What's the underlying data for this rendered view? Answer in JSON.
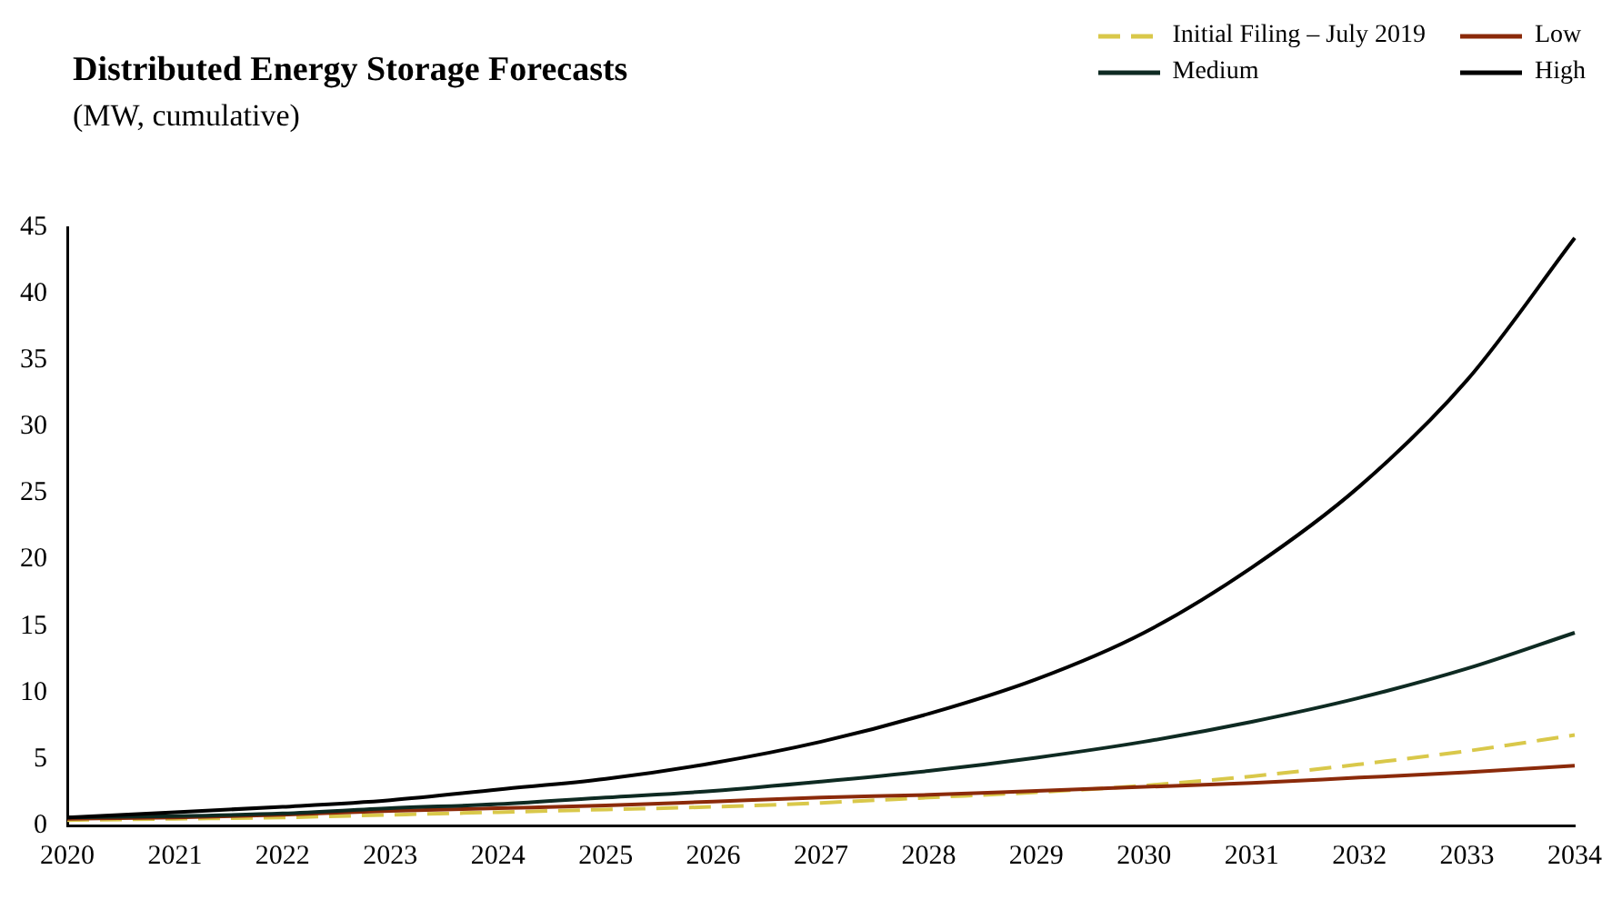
{
  "chart_data": {
    "type": "line",
    "title": "Distributed Energy Storage Forecasts",
    "subtitle": "(MW, cumulative)",
    "categories": [
      "2020",
      "2021",
      "2022",
      "2023",
      "2024",
      "2025",
      "2026",
      "2027",
      "2028",
      "2029",
      "2030",
      "2031",
      "2032",
      "2033",
      "2034"
    ],
    "series": [
      {
        "name": "Initial Filing – July 2019",
        "color": "#d9c84a",
        "line_style": "dashed",
        "values": [
          0.4,
          0.5,
          0.6,
          0.8,
          1.0,
          1.2,
          1.4,
          1.7,
          2.1,
          2.5,
          3.0,
          3.7,
          4.6,
          5.6,
          6.8
        ]
      },
      {
        "name": "Low",
        "color": "#8b2a0a",
        "values": [
          0.5,
          0.6,
          0.8,
          1.1,
          1.3,
          1.5,
          1.8,
          2.1,
          2.3,
          2.6,
          2.9,
          3.2,
          3.6,
          4.0,
          4.5
        ]
      },
      {
        "name": "Medium",
        "color": "#0e2a22",
        "values": [
          0.6,
          0.7,
          0.9,
          1.3,
          1.6,
          2.1,
          2.6,
          3.3,
          4.1,
          5.1,
          6.3,
          7.8,
          9.6,
          11.8,
          14.5
        ]
      },
      {
        "name": "High",
        "color": "#000000",
        "values": [
          0.6,
          1.0,
          1.4,
          1.9,
          2.7,
          3.5,
          4.7,
          6.3,
          8.4,
          11.0,
          14.5,
          19.4,
          25.5,
          33.5,
          44.2
        ]
      }
    ],
    "ylim": [
      0,
      45
    ],
    "yticks": [
      0,
      5,
      10,
      15,
      20,
      25,
      30,
      35,
      40,
      45
    ],
    "grid": false,
    "legend": "top right",
    "marker": "none"
  }
}
